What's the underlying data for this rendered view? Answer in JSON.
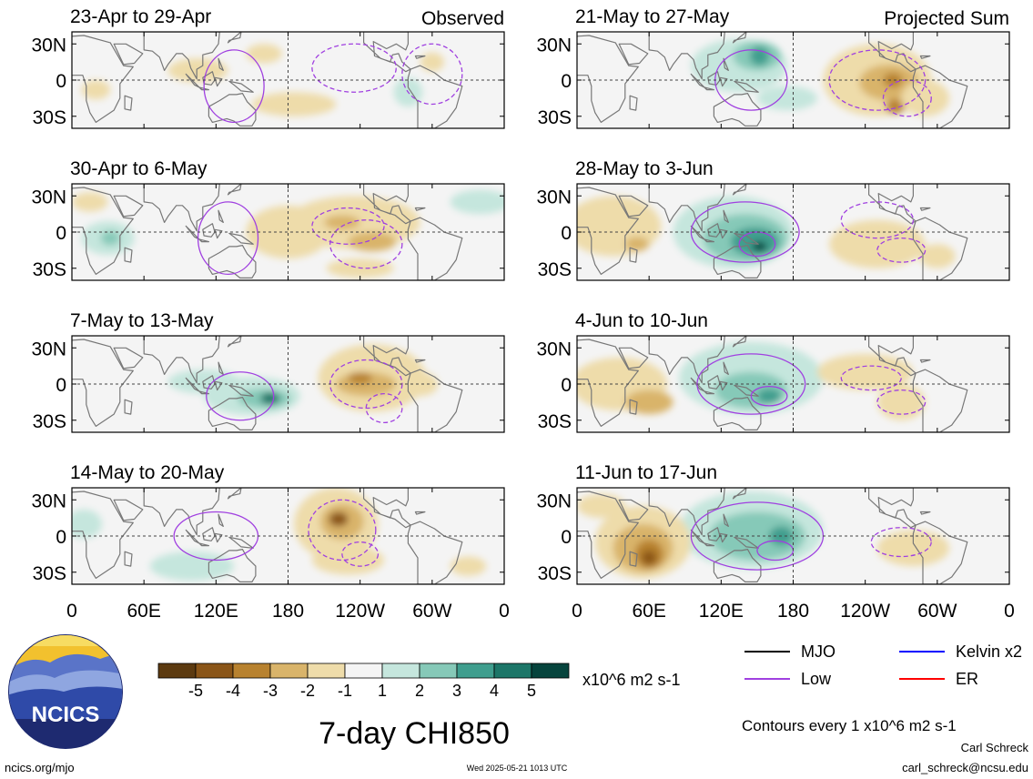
{
  "chart_data": {
    "type": "heatmap",
    "title": "7-day CHI850",
    "variable": "CHI850",
    "panel_labels": {
      "left": "Observed",
      "right": "Projected Sum"
    },
    "x_ticks": [
      "0",
      "60E",
      "120E",
      "180",
      "120W",
      "60W",
      "0"
    ],
    "y_ticks": [
      "30N",
      "0",
      "30S"
    ],
    "panels": [
      {
        "period": "23-Apr to 29-Apr",
        "group": "Observed"
      },
      {
        "period": "30-Apr to 6-May",
        "group": "Observed"
      },
      {
        "period": "7-May to 13-May",
        "group": "Observed"
      },
      {
        "period": "14-May to 20-May",
        "group": "Observed"
      },
      {
        "period": "21-May to 27-May",
        "group": "Projected Sum"
      },
      {
        "period": "28-May to 3-Jun",
        "group": "Projected Sum"
      },
      {
        "period": "4-Jun to 10-Jun",
        "group": "Projected Sum"
      },
      {
        "period": "11-Jun to 17-Jun",
        "group": "Projected Sum"
      }
    ],
    "colorbar": {
      "labels": [
        "-5",
        "-4",
        "-3",
        "-2",
        "-1",
        "1",
        "2",
        "3",
        "4",
        "5"
      ],
      "colors": [
        "#5c3a10",
        "#8a5518",
        "#b8822f",
        "#d9b46a",
        "#eedcaa",
        "#f4f4f4",
        "#c5e6dd",
        "#86c9b8",
        "#3f9e8e",
        "#1c7668",
        "#06443d"
      ],
      "units": "x10^6 m2 s-1"
    },
    "legend": [
      {
        "label": "MJO",
        "color": "#000000"
      },
      {
        "label": "Kelvin x2",
        "color": "#0000ff"
      },
      {
        "label": "Low",
        "color": "#a040e0"
      },
      {
        "label": "ER",
        "color": "#ff0000"
      }
    ],
    "contour_note": "Contours every 1 x10^6 m2 s-1"
  },
  "colors": {
    "ocean": "#f4f4f4",
    "land": "#777777",
    "low_contour": "#a040e0",
    "pos1": "#c5e6dd",
    "pos2": "#86c9b8",
    "pos3": "#3f9e8e",
    "pos4": "#1c7668",
    "pos5": "#06443d",
    "neg1": "#eedcaa",
    "neg2": "#d9b46a",
    "neg3": "#b8822f",
    "neg4": "#8a5518"
  },
  "logo": {
    "text": "NCICS"
  },
  "footer": {
    "url": "ncics.org/mjo",
    "timestamp": "Wed 2025-05-21 1013 UTC",
    "author": "Carl Schreck",
    "email": "carl_schreck@ncsu.edu"
  }
}
